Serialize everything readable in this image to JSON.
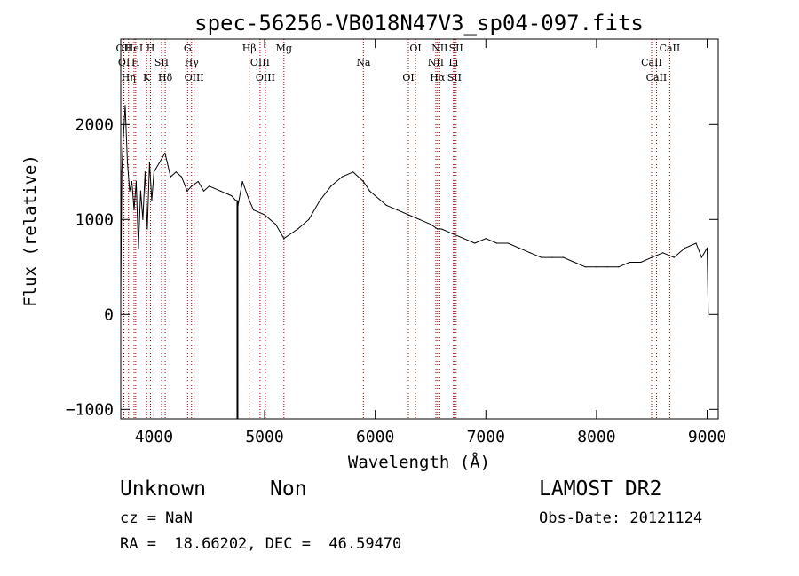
{
  "chart_data": {
    "type": "line",
    "title": "spec-56256-VB018N47V3_sp04-097.fits",
    "xlabel": "Wavelength (Å)",
    "ylabel": "Flux (relative)",
    "xlim": [
      3700,
      9100
    ],
    "ylim": [
      -1100,
      2900
    ],
    "x_ticks": [
      4000,
      5000,
      6000,
      7000,
      8000,
      9000
    ],
    "y_ticks": [
      -1000,
      0,
      1000,
      2000
    ],
    "grid": false,
    "line_color": "#000000",
    "marker_color": "#aa0000",
    "series": [
      {
        "x": [
          3700,
          3710,
          3720,
          3740,
          3760,
          3780,
          3800,
          3820,
          3840,
          3860,
          3880,
          3900,
          3920,
          3940,
          3960,
          3980,
          4000,
          4050,
          4100,
          4150,
          4200,
          4250,
          4300,
          4340,
          4400,
          4450,
          4500,
          4600,
          4700,
          4740,
          4750,
          4760,
          4800,
          4862,
          4900,
          5000,
          5100,
          5175,
          5300,
          5400,
          5500,
          5600,
          5700,
          5800,
          5893,
          5950,
          6000,
          6100,
          6200,
          6300,
          6400,
          6500,
          6563,
          6600,
          6700,
          6800,
          6900,
          7000,
          7100,
          7200,
          7300,
          7400,
          7500,
          7600,
          7700,
          7800,
          7900,
          8000,
          8100,
          8200,
          8300,
          8400,
          8500,
          8600,
          8700,
          8800,
          8900,
          8950,
          9000,
          9010
        ],
        "y": [
          200,
          1500,
          1800,
          2200,
          1600,
          1300,
          1400,
          1100,
          1400,
          700,
          1300,
          1000,
          1500,
          900,
          1600,
          1200,
          1500,
          1600,
          1700,
          1450,
          1500,
          1450,
          1300,
          1350,
          1400,
          1300,
          1350,
          1300,
          1250,
          1200,
          1200,
          1150,
          1400,
          1200,
          1100,
          1050,
          950,
          800,
          900,
          1000,
          1200,
          1350,
          1450,
          1500,
          1400,
          1300,
          1250,
          1150,
          1100,
          1050,
          1000,
          950,
          900,
          900,
          850,
          800,
          750,
          800,
          750,
          750,
          700,
          650,
          600,
          600,
          600,
          550,
          500,
          500,
          500,
          500,
          550,
          550,
          600,
          650,
          600,
          700,
          750,
          600,
          700,
          0
        ]
      }
    ],
    "spikes": [
      {
        "x": 4755,
        "to": -1100
      }
    ],
    "line_markers": [
      {
        "x": 3727,
        "labels": [
          "OII"
        ]
      },
      {
        "x": 3729,
        "labels": [
          "OI"
        ]
      },
      {
        "x": 3770,
        "labels": [
          "Hη"
        ]
      },
      {
        "x": 3820,
        "labels": [
          "HeI"
        ]
      },
      {
        "x": 3835,
        "labels": [
          "H"
        ]
      },
      {
        "x": 3934,
        "labels": [
          "K"
        ]
      },
      {
        "x": 3969,
        "labels": [
          "H"
        ]
      },
      {
        "x": 4069,
        "labels": [
          "SII"
        ]
      },
      {
        "x": 4102,
        "labels": [
          "Hδ"
        ]
      },
      {
        "x": 4304,
        "labels": [
          "G"
        ]
      },
      {
        "x": 4340,
        "labels": [
          "Hγ"
        ]
      },
      {
        "x": 4363,
        "labels": [
          "OIII"
        ]
      },
      {
        "x": 4861,
        "labels": [
          "Hβ"
        ]
      },
      {
        "x": 4959,
        "labels": [
          "OIII"
        ]
      },
      {
        "x": 5007,
        "labels": [
          "OIII"
        ]
      },
      {
        "x": 5175,
        "labels": [
          "Mg"
        ]
      },
      {
        "x": 5893,
        "labels": [
          "Na"
        ]
      },
      {
        "x": 6300,
        "labels": [
          "OI"
        ]
      },
      {
        "x": 6364,
        "labels": [
          "OI"
        ]
      },
      {
        "x": 6548,
        "labels": [
          "NII"
        ]
      },
      {
        "x": 6563,
        "labels": [
          "Hα"
        ]
      },
      {
        "x": 6583,
        "labels": [
          "NII"
        ]
      },
      {
        "x": 6707,
        "labels": [
          "Li"
        ]
      },
      {
        "x": 6716,
        "labels": [
          "SII"
        ]
      },
      {
        "x": 6731,
        "labels": [
          "SII"
        ]
      },
      {
        "x": 8498,
        "labels": [
          "CaII"
        ]
      },
      {
        "x": 8542,
        "labels": [
          "CaII"
        ]
      },
      {
        "x": 8662,
        "labels": [
          "CaII"
        ]
      }
    ]
  },
  "info": {
    "object_class": "Unknown",
    "object_subclass": "Non",
    "survey": "LAMOST DR2",
    "cz_line": "cz = NaN",
    "obs_date_line": "Obs-Date: 20121124",
    "coords_line": "RA =  18.66202, DEC =  46.59470"
  }
}
